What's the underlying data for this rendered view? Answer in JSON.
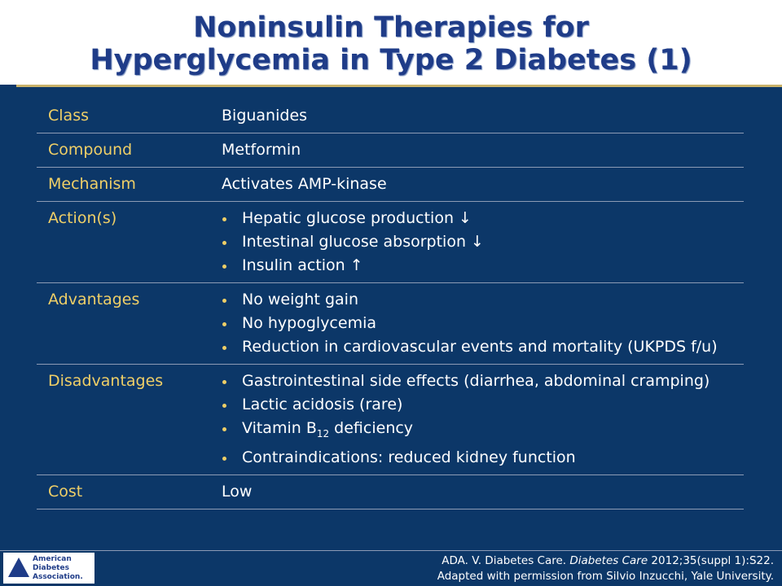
{
  "header": {
    "title_lines": [
      "Noninsulin Therapies for",
      "Hyperglycemia in Type 2 Diabetes (1)"
    ]
  },
  "table": {
    "rows": [
      {
        "label": "Class",
        "value": "Biguanides"
      },
      {
        "label": "Compound",
        "value": "Metformin"
      },
      {
        "label": "Mechanism",
        "value": "Activates AMP-kinase"
      },
      {
        "label": "Action(s)",
        "bullets": [
          [
            "Hepatic glucose production ↓"
          ],
          [
            "Intestinal glucose absorption ↓"
          ],
          [
            "Insulin action ↑"
          ]
        ]
      },
      {
        "label": "Advantages",
        "bullets": [
          [
            "No weight gain"
          ],
          [
            "No hypoglycemia"
          ],
          [
            "Reduction in cardiovascular events and mortality (UKPDS f/u)"
          ]
        ]
      },
      {
        "label": "Disadvantages",
        "bullets": [
          [
            "Gastrointestinal side effects (diarrhea, abdominal cramping)"
          ],
          [
            "Lactic acidosis (rare)"
          ],
          [
            "Vitamin B",
            "12",
            " deficiency"
          ],
          [
            "Contraindications: reduced kidney function"
          ]
        ]
      },
      {
        "label": "Cost",
        "value": "Low"
      }
    ]
  },
  "footer": {
    "citation_line1": [
      "ADA. V. Diabetes Care. ",
      "Diabetes Care",
      " 2012;35(suppl 1):S22."
    ],
    "citation_line2": "Adapted with permission from Silvio Inzucchi, Yale University.",
    "logo_lines": [
      "American",
      "Diabetes",
      "Association."
    ]
  }
}
